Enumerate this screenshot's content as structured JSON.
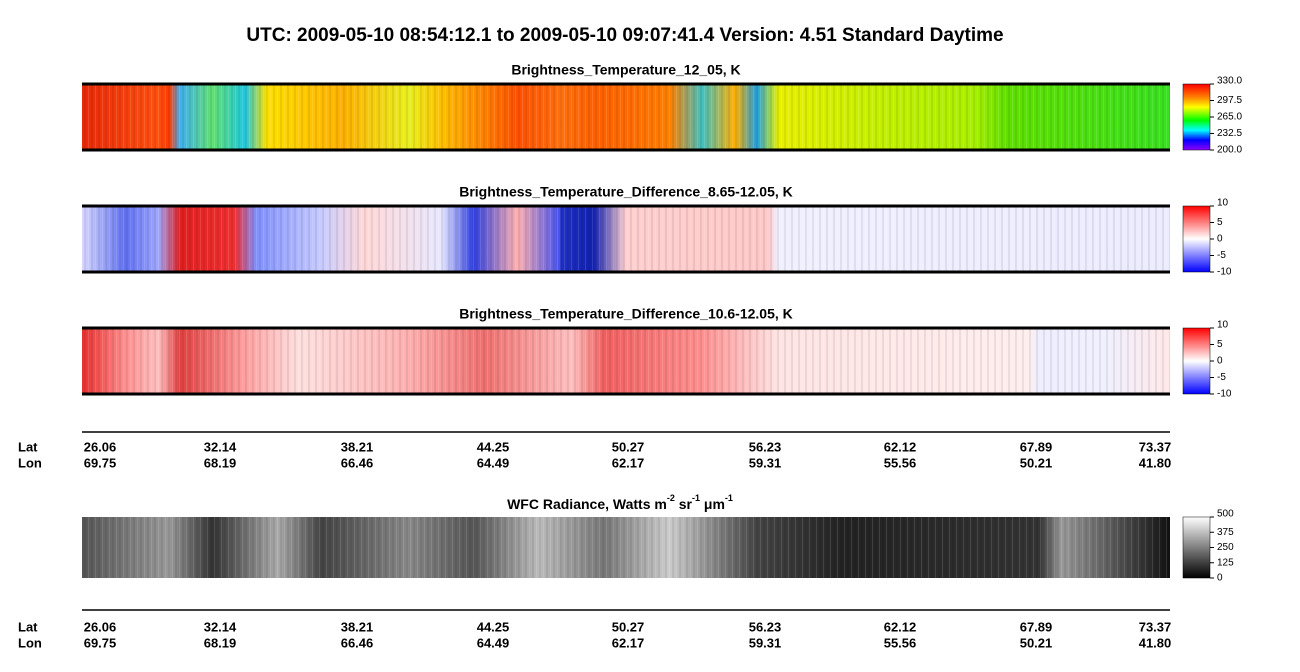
{
  "title": "UTC:  2009-05-10   08:54:12.1  to  2009-05-10   09:07:41.4    Version: 4.51  Standard Daytime",
  "panels": [
    {
      "title": "Brightness_Temperature_12_05, K",
      "colorbar_labels": [
        "330.0",
        "297.5",
        "265.0",
        "232.5",
        "200.0"
      ]
    },
    {
      "title": "Brightness_Temperature_Difference_8.65-12.05, K",
      "colorbar_labels": [
        "10",
        "5",
        "0",
        "-5",
        "-10"
      ]
    },
    {
      "title": "Brightness_Temperature_Difference_10.6-12.05, K",
      "colorbar_labels": [
        "10",
        "5",
        "0",
        "-5",
        "-10"
      ]
    }
  ],
  "axis_top": {
    "lat_label": "Lat",
    "lon_label": "Lon",
    "lat": [
      "26.06",
      "32.14",
      "38.21",
      "44.25",
      "50.27",
      "56.23",
      "62.12",
      "67.89",
      "73.37"
    ],
    "lon": [
      "69.75",
      "68.19",
      "66.46",
      "64.49",
      "62.17",
      "59.31",
      "55.56",
      "50.21",
      "41.80"
    ]
  },
  "wfc": {
    "title_parts": [
      "WFC Radiance, Watts m",
      "-2",
      " sr",
      "-1",
      " μm",
      "-1"
    ],
    "colorbar_labels": [
      "500",
      "375",
      "250",
      "125",
      "0"
    ]
  },
  "axis_bottom": {
    "lat_label": "Lat",
    "lon_label": "Lon",
    "lat": [
      "26.06",
      "32.14",
      "38.21",
      "44.25",
      "50.27",
      "56.23",
      "62.12",
      "67.89",
      "73.37"
    ],
    "lon": [
      "69.75",
      "68.19",
      "66.46",
      "64.49",
      "62.17",
      "59.31",
      "55.56",
      "50.21",
      "41.80"
    ]
  }
}
